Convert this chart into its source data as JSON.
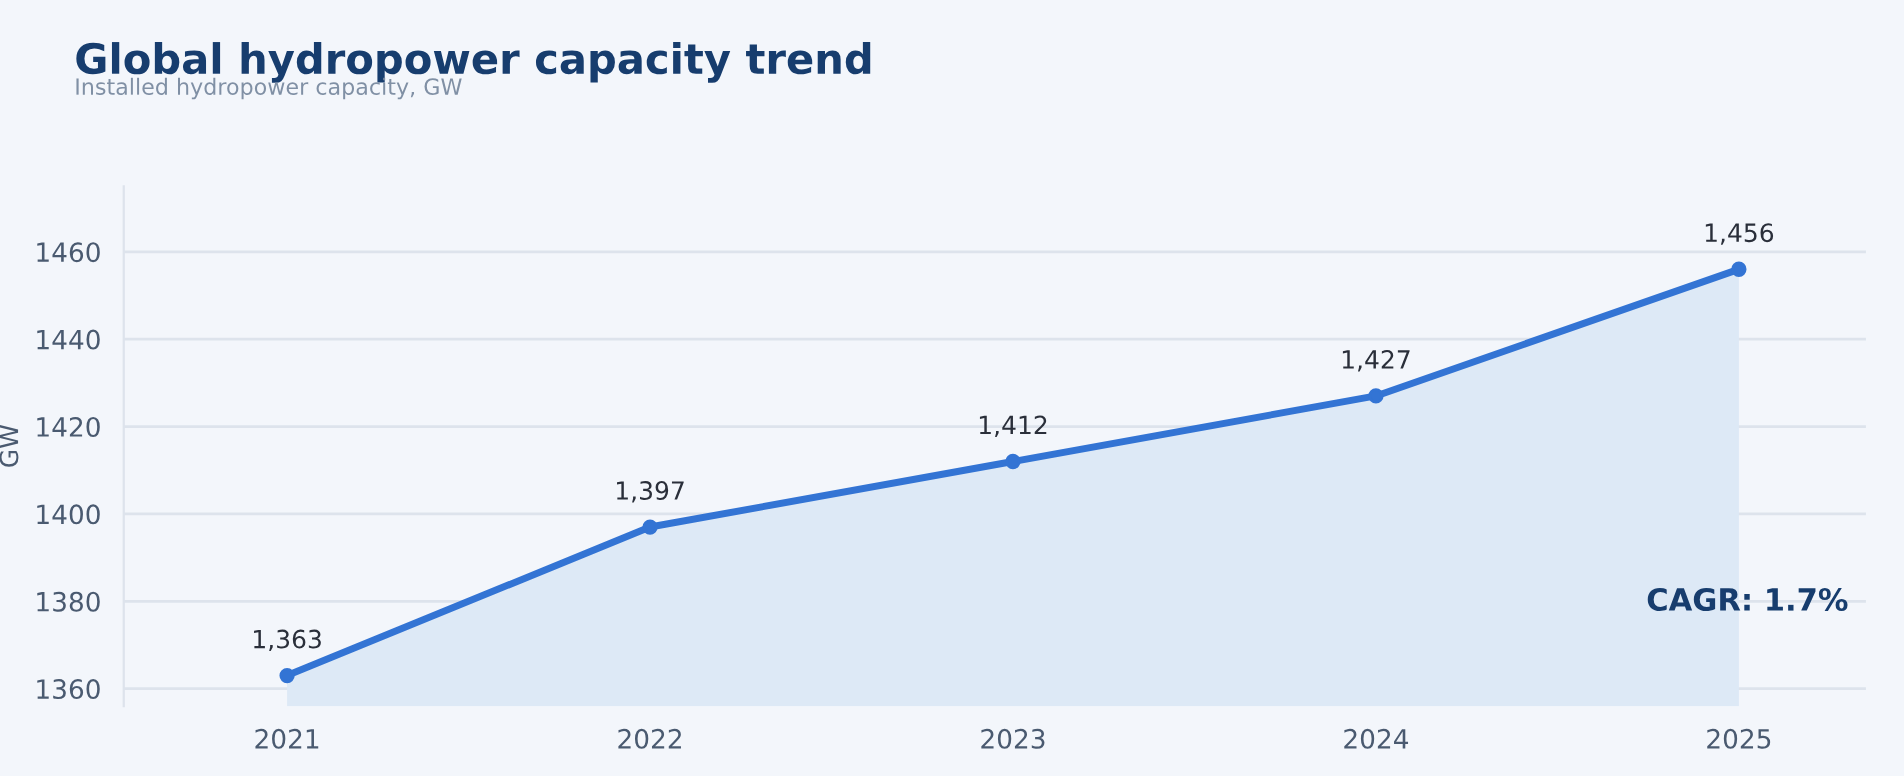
{
  "chart_data": {
    "type": "area",
    "title": "Global hydropower capacity trend",
    "subtitle": "Installed hydropower capacity, GW",
    "ylabel": "GW",
    "categories": [
      "2021",
      "2022",
      "2023",
      "2024",
      "2025"
    ],
    "series": [
      {
        "color": "#3374d4",
        "values": [
          1363,
          1397,
          1412,
          1427,
          1456
        ]
      }
    ],
    "value_labels": [
      "1,363",
      "1,397",
      "1,412",
      "1,427",
      "1,456"
    ],
    "ylim": [
      1356,
      1475
    ],
    "yticks": [
      1360,
      1380,
      1400,
      1420,
      1440,
      1460
    ],
    "grid": "y",
    "marker": "circle",
    "line_style": "solid",
    "annotations": [
      "CAGR: 1.7%"
    ]
  }
}
